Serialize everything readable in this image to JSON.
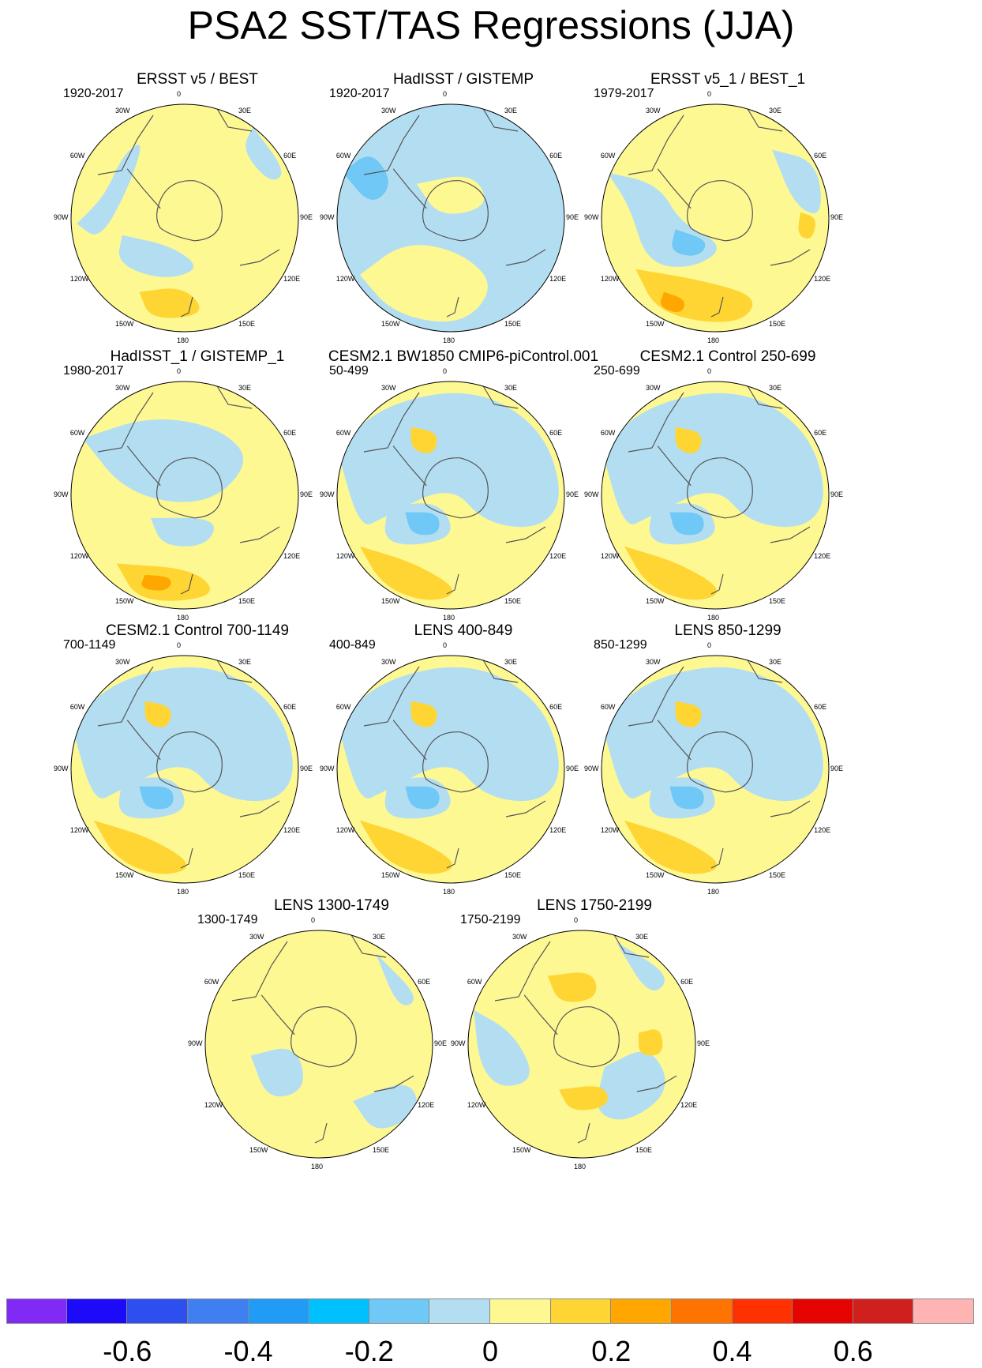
{
  "title": "PSA2 SST/TAS Regressions (JJA)",
  "longitude_labels": {
    "n0": "0",
    "w30": "30W",
    "e30": "30E",
    "w60": "60W",
    "e60": "60E",
    "w90": "90W",
    "e90": "90E",
    "w120": "120W",
    "e120": "120E",
    "w150": "150W",
    "e150": "150E",
    "s180": "180"
  },
  "colors": {
    "ocean_neg": "#b3def2",
    "ocean_pos": "#fef893",
    "contour_levels": [
      "#8129f5",
      "#1c0af8",
      "#2e4ff0",
      "#3f7ff0",
      "#209cf6",
      "#00c0ff",
      "#6fc8f5",
      "#b3def2",
      "#fef893",
      "#fed532",
      "#ffa700",
      "#ff7300",
      "#ff3100",
      "#e50400",
      "#d0201d",
      "#ffb3b3"
    ]
  },
  "chart_data": [
    {
      "type": "heatmap",
      "title": "ERSST v5 / BEST",
      "period": "1920-2017",
      "pattern": "warm_broad"
    },
    {
      "type": "heatmap",
      "title": "HadISST / GISTEMP",
      "period": "1920-2017",
      "pattern": "cool_broad"
    },
    {
      "type": "heatmap",
      "title": "ERSST v5_1 / BEST_1",
      "period": "1979-2017",
      "pattern": "warm_strong"
    },
    {
      "type": "heatmap",
      "title": "HadISST_1 / GISTEMP_1",
      "period": "1980-2017",
      "pattern": "mixed"
    },
    {
      "type": "heatmap",
      "title": "CESM2.1 BW1850 CMIP6-piControl.001",
      "period": "50-499",
      "pattern": "model"
    },
    {
      "type": "heatmap",
      "title": "CESM2.1 Control 250-699",
      "period": "250-699",
      "pattern": "model"
    },
    {
      "type": "heatmap",
      "title": "CESM2.1 Control 700-1149",
      "period": "700-1149",
      "pattern": "model"
    },
    {
      "type": "heatmap",
      "title": "LENS 400-849",
      "period": "400-849",
      "pattern": "model"
    },
    {
      "type": "heatmap",
      "title": "LENS 850-1299",
      "period": "850-1299",
      "pattern": "model"
    },
    {
      "type": "heatmap",
      "title": "LENS 1300-1749",
      "period": "1300-1749",
      "pattern": "lens_weak"
    },
    {
      "type": "heatmap",
      "title": "LENS 1750-2199",
      "period": "1750-2199",
      "pattern": "lens_mixed"
    }
  ],
  "colorbar": {
    "labels": [
      "-0.6",
      "-0.4",
      "-0.2",
      "0",
      "0.2",
      "0.4",
      "0.6"
    ],
    "label_boundaries": [
      2,
      4,
      6,
      8,
      10,
      12,
      14
    ]
  }
}
